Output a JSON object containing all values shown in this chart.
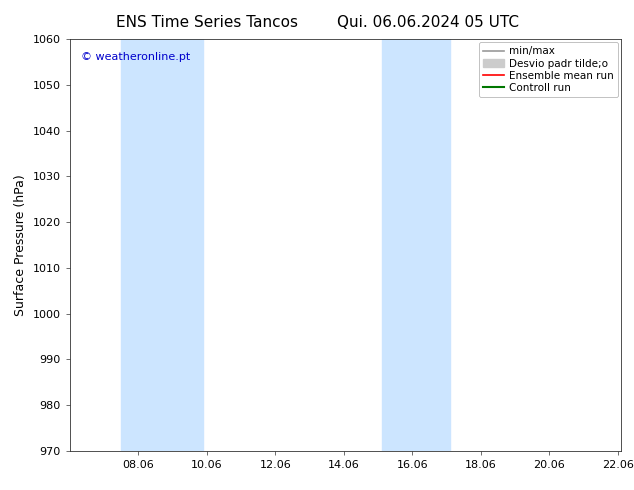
{
  "title_left": "ENS Time Series Tancos",
  "title_right": "Qui. 06.06.2024 05 UTC",
  "ylabel": "Surface Pressure (hPa)",
  "ylim": [
    970,
    1060
  ],
  "yticks": [
    970,
    980,
    990,
    1000,
    1010,
    1020,
    1030,
    1040,
    1050,
    1060
  ],
  "xlim": [
    6.0,
    22.1
  ],
  "xtick_positions": [
    8,
    10,
    12,
    14,
    16,
    18,
    20,
    22
  ],
  "xtick_labels": [
    "08.06",
    "10.06",
    "12.06",
    "14.06",
    "16.06",
    "18.06",
    "20.06",
    "22.06"
  ],
  "watermark": "© weatheronline.pt",
  "watermark_color": "#0000cc",
  "bg_color": "#ffffff",
  "plot_bg_color": "#ffffff",
  "shade_bands": [
    {
      "x_start": 7.5,
      "x_end": 9.9,
      "color": "#cce5ff"
    },
    {
      "x_start": 15.1,
      "x_end": 17.1,
      "color": "#cce5ff"
    }
  ],
  "legend_items": [
    {
      "label": "min/max",
      "color": "#999999",
      "lw": 1.2,
      "style": "-",
      "is_patch": false
    },
    {
      "label": "Desvio padr tilde;o",
      "color": "#cccccc",
      "lw": 5,
      "style": "-",
      "is_patch": true
    },
    {
      "label": "Ensemble mean run",
      "color": "#ff0000",
      "lw": 1.2,
      "style": "-",
      "is_patch": false
    },
    {
      "label": "Controll run",
      "color": "#007700",
      "lw": 1.5,
      "style": "-",
      "is_patch": false
    }
  ],
  "title_fontsize": 11,
  "tick_fontsize": 8,
  "label_fontsize": 9,
  "legend_fontsize": 7.5
}
